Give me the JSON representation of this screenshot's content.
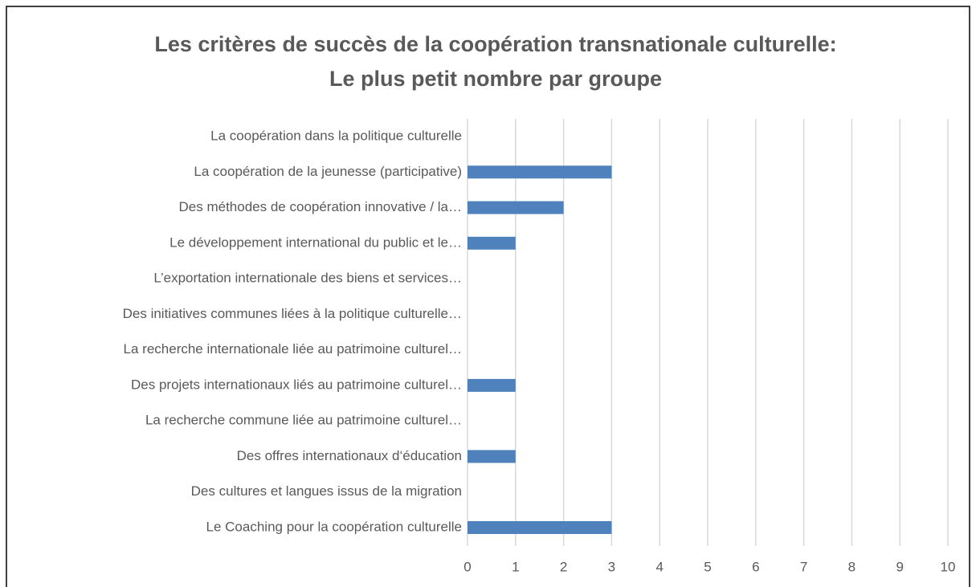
{
  "chart_data": {
    "type": "hbar",
    "title": [
      "Les critères de succès de la coopération transnationale culturelle:",
      "Le plus petit nombre par groupe"
    ],
    "categories": [
      "La coopération dans la politique culturelle",
      "La coopération de la jeunesse (participative)",
      "Des méthodes de coopération innovative / la…",
      "Le développement international du public et le…",
      "L’exportation internationale des biens et services…",
      "Des initiatives communes liées à la politique culturelle…",
      "La recherche internationale liée au patrimoine culturel…",
      "Des projets internationaux liés au patrimoine culturel…",
      "La recherche commune liée au patrimoine culturel…",
      "Des offres internationaux d‘éducation",
      "Des cultures et langues issus de la migration",
      "Le Coaching pour la coopération culturelle"
    ],
    "values": [
      0,
      3,
      2,
      1,
      0,
      0,
      0,
      1,
      0,
      1,
      0,
      3
    ],
    "color": "#4f81bd",
    "xlim": [
      0,
      10
    ],
    "xticks": [
      0,
      1,
      2,
      3,
      4,
      5,
      6,
      7,
      8,
      9,
      10
    ],
    "grid": true
  }
}
